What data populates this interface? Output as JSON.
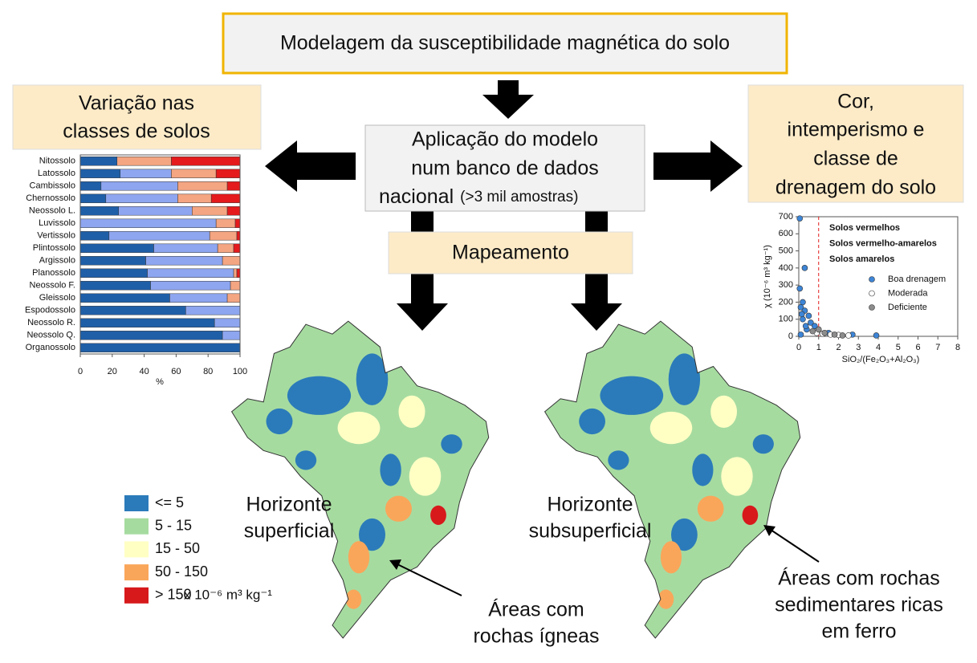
{
  "header": {
    "title": "Modelagem da susceptibilidade magnética do solo"
  },
  "boxes": {
    "left": [
      "Variação nas",
      "classes de solos"
    ],
    "center": [
      "Aplicação do modelo",
      "num banco de dados",
      "nacional"
    ],
    "center_note": "(>3 mil amostras)",
    "right": [
      "Cor,",
      "intemperismo e",
      "classe de",
      "drenagem do solo"
    ],
    "mapping": "Mapeamento"
  },
  "chart_data": [
    {
      "type": "stacked-barh",
      "categories": [
        "Nitossolo",
        "Latossolo",
        "Cambissolo",
        "Chernossolo",
        "Neossolo L.",
        "Luvissolo",
        "Vertissolo",
        "Plintossolo",
        "Argissolo",
        "Planossolo",
        "Neossolo F.",
        "Gleissolo",
        "Espodossolo",
        "Neossolo R.",
        "Neossolo Q.",
        "Organossolo"
      ],
      "series": [
        {
          "color": "#1f5fa8",
          "values": [
            23,
            25,
            13,
            16,
            24,
            0,
            18,
            46,
            41,
            42,
            44,
            56,
            66,
            84,
            89,
            100
          ]
        },
        {
          "color": "#8ea6f0",
          "values": [
            0,
            32,
            48,
            45,
            46,
            85,
            63,
            40,
            48,
            54,
            50,
            36,
            34,
            16,
            11,
            0
          ]
        },
        {
          "color": "#f4a582",
          "values": [
            34,
            28,
            31,
            21,
            22,
            12,
            17,
            10,
            11,
            2,
            6,
            8,
            0,
            0,
            0,
            0
          ]
        },
        {
          "color": "#e41a1c",
          "values": [
            43,
            15,
            8,
            18,
            8,
            3,
            2,
            4,
            0,
            2,
            0,
            0,
            0,
            0,
            0,
            0
          ]
        }
      ],
      "xlim": [
        0,
        100
      ],
      "xticks": [
        0,
        20,
        40,
        60,
        80,
        100
      ],
      "x_label": "%"
    },
    {
      "type": "scatter",
      "y_label": "χ (10⁻⁶ m³ kg⁻¹)",
      "x_label": "SiO₂/(Fe₂O₃+Al₂O₃)",
      "xlim": [
        0,
        8
      ],
      "xticks": [
        0,
        1,
        2,
        3,
        4,
        5,
        6,
        7,
        8
      ],
      "ylim": [
        0,
        700
      ],
      "yticks": [
        0,
        100,
        200,
        300,
        400,
        500,
        600,
        700
      ],
      "reference_line_x": 1,
      "annotations": [
        {
          "text": "Solos vermelhos",
          "color": "#e41a1c"
        },
        {
          "text": "Solos vermelho-amarelos",
          "color": "#f28c28"
        },
        {
          "text": "Solos amarelos",
          "color": "#c8c000"
        }
      ],
      "series": [
        {
          "name": "Boa drenagem",
          "color": "#3d85d6",
          "x": [
            0.05,
            0.3,
            0.05,
            0.2,
            0.1,
            0.3,
            0.5,
            0.2,
            0.6,
            0.8,
            0.4,
            1.5,
            2.7,
            3.9,
            0.1,
            0.15,
            0.35
          ],
          "values": [
            690,
            400,
            280,
            200,
            170,
            150,
            120,
            100,
            80,
            60,
            40,
            20,
            10,
            5,
            10,
            130,
            60
          ]
        },
        {
          "name": "Moderada",
          "color": "#ffffff",
          "x": [
            0.9,
            1.2,
            1.6,
            2.0,
            2.5
          ],
          "values": [
            20,
            15,
            10,
            8,
            5
          ]
        },
        {
          "name": "Deficiente",
          "color": "#8c8c8c",
          "x": [
            0.7,
            1.0,
            1.3,
            1.8,
            2.2
          ],
          "values": [
            30,
            40,
            20,
            10,
            5
          ]
        }
      ]
    }
  ],
  "maps": [
    {
      "title": [
        "Horizonte",
        "superficial"
      ]
    },
    {
      "title": [
        "Horizonte",
        "subsuperficial"
      ]
    }
  ],
  "map_legend": {
    "categories": [
      "<= 5",
      "5 - 15",
      "15 - 50",
      "50 - 150",
      "> 150"
    ],
    "colors": [
      "#2b7bba",
      "#a6dba0",
      "#ffffc4",
      "#f9a65a",
      "#d7191c"
    ],
    "unit": "x 10⁻⁶ m³ kg⁻¹"
  },
  "annotations": [
    {
      "lines": [
        "Áreas com",
        "rochas ígneas"
      ]
    },
    {
      "lines": [
        "Áreas com rochas",
        "sedimentares ricas",
        "em ferro"
      ]
    }
  ]
}
